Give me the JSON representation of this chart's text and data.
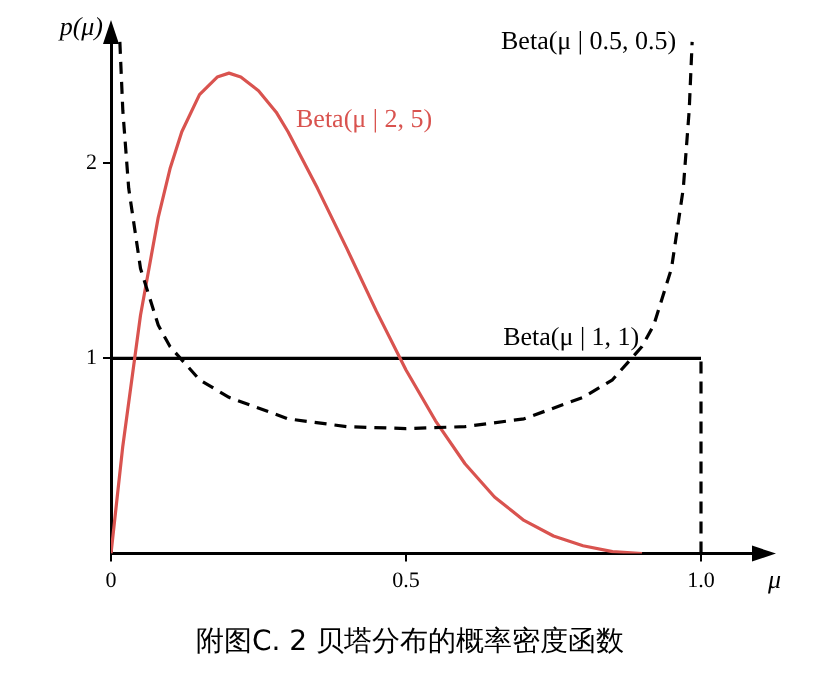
{
  "chart_data": {
    "type": "line",
    "title": "附图C. 2  贝塔分布的概率密度函数",
    "xlabel": "μ",
    "ylabel": "p(μ)",
    "xlim": [
      0,
      1.1
    ],
    "xticks": [
      0,
      0.5,
      {
        "value": 1,
        "label": "1.0"
      }
    ],
    "ylim": [
      0,
      2.65
    ],
    "yticks": [
      1,
      2
    ],
    "grid": false,
    "legend": false,
    "marker": "none",
    "series": [
      {
        "name": "Beta(μ | 0.5, 0.5)",
        "color": "#000000",
        "line_style": "dashed",
        "x": [
          0.015,
          0.02,
          0.03,
          0.05,
          0.08,
          0.1,
          0.15,
          0.2,
          0.3,
          0.4,
          0.5,
          0.6,
          0.7,
          0.8,
          0.85,
          0.9,
          0.92,
          0.95,
          0.97,
          0.98,
          0.985
        ],
        "values": [
          2.62,
          2.27,
          1.87,
          1.46,
          1.17,
          1.06,
          0.89,
          0.8,
          0.69,
          0.65,
          0.64,
          0.65,
          0.69,
          0.8,
          0.89,
          1.06,
          1.17,
          1.46,
          1.87,
          2.27,
          2.62
        ]
      },
      {
        "name": "Beta(μ | 2, 5)",
        "color": "#d9534f",
        "line_style": "solid",
        "x": [
          0,
          0.02,
          0.05,
          0.08,
          0.1,
          0.12,
          0.15,
          0.18,
          0.2,
          0.22,
          0.25,
          0.28,
          0.3,
          0.35,
          0.4,
          0.45,
          0.5,
          0.55,
          0.6,
          0.65,
          0.7,
          0.75,
          0.8,
          0.85,
          0.9
        ],
        "values": [
          0,
          0.55,
          1.22,
          1.72,
          1.97,
          2.16,
          2.35,
          2.44,
          2.46,
          2.44,
          2.37,
          2.26,
          2.16,
          1.87,
          1.56,
          1.24,
          0.94,
          0.68,
          0.46,
          0.29,
          0.17,
          0.09,
          0.04,
          0.01,
          0
        ]
      },
      {
        "name": "Beta(μ | 1, 1)",
        "color": "#000000",
        "line_style": "solid",
        "x": [
          0,
          1
        ],
        "values": [
          1,
          1
        ]
      },
      {
        "color": "#000000",
        "line_style": "dashed",
        "x": [
          1,
          1
        ],
        "values": [
          0,
          1
        ]
      }
    ]
  }
}
